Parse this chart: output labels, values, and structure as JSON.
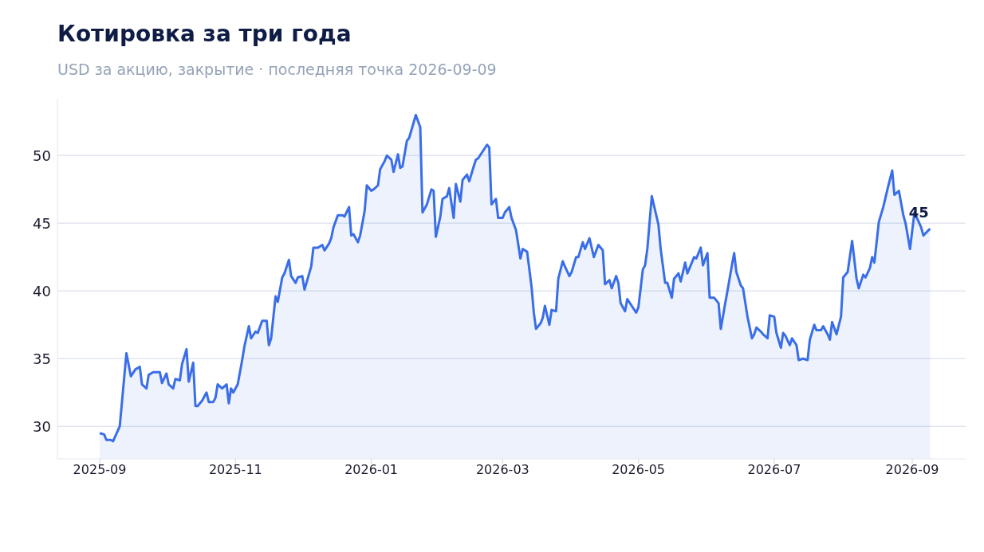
{
  "chart_data": {
    "type": "area",
    "title": "Котировка за три года",
    "subtitle": "USD за акцию, закрытие · последняя точка 2026-09-09",
    "x": [
      "2025-09-01",
      "2025-09-03",
      "2025-09-04",
      "2025-09-06",
      "2025-09-07",
      "2025-09-10",
      "2025-09-13",
      "2025-09-15",
      "2025-09-17",
      "2025-09-19",
      "2025-09-20",
      "2025-09-22",
      "2025-09-23",
      "2025-09-25",
      "2025-09-28",
      "2025-09-29",
      "2025-10-01",
      "2025-10-02",
      "2025-10-04",
      "2025-10-05",
      "2025-10-07",
      "2025-10-08",
      "2025-10-10",
      "2025-10-11",
      "2025-10-13",
      "2025-10-14",
      "2025-10-15",
      "2025-10-17",
      "2025-10-19",
      "2025-10-20",
      "2025-10-22",
      "2025-10-23",
      "2025-10-24",
      "2025-10-26",
      "2025-10-28",
      "2025-10-29",
      "2025-10-30",
      "2025-10-31",
      "2025-11-02",
      "2025-11-04",
      "2025-11-05",
      "2025-11-07",
      "2025-11-08",
      "2025-11-10",
      "2025-11-11",
      "2025-11-13",
      "2025-11-15",
      "2025-11-16",
      "2025-11-17",
      "2025-11-19",
      "2025-11-20",
      "2025-11-22",
      "2025-11-23",
      "2025-11-25",
      "2025-11-26",
      "2025-11-28",
      "2025-11-29",
      "2025-12-01",
      "2025-12-02",
      "2025-12-05",
      "2025-12-06",
      "2025-12-08",
      "2025-12-10",
      "2025-12-11",
      "2025-12-13",
      "2025-12-14",
      "2025-12-15",
      "2025-12-17",
      "2025-12-19",
      "2025-12-20",
      "2025-12-22",
      "2025-12-23",
      "2025-12-24",
      "2025-12-26",
      "2025-12-27",
      "2025-12-29",
      "2025-12-30",
      "2026-01-01",
      "2026-01-02",
      "2026-01-04",
      "2026-01-05",
      "2026-01-07",
      "2026-01-08",
      "2026-01-10",
      "2026-01-11",
      "2026-01-13",
      "2026-01-14",
      "2026-01-15",
      "2026-01-17",
      "2026-01-18",
      "2026-01-21",
      "2026-01-23",
      "2026-01-24",
      "2026-01-26",
      "2026-01-28",
      "2026-01-29",
      "2026-01-30",
      "2026-02-01",
      "2026-02-02",
      "2026-02-04",
      "2026-02-05",
      "2026-02-07",
      "2026-02-08",
      "2026-02-10",
      "2026-02-11",
      "2026-02-13",
      "2026-02-14",
      "2026-02-16",
      "2026-02-17",
      "2026-02-18",
      "2026-02-20",
      "2026-02-22",
      "2026-02-23",
      "2026-02-24",
      "2026-02-26",
      "2026-02-27",
      "2026-03-01",
      "2026-03-02",
      "2026-03-04",
      "2026-03-05",
      "2026-03-07",
      "2026-03-09",
      "2026-03-10",
      "2026-03-12",
      "2026-03-14",
      "2026-03-15",
      "2026-03-16",
      "2026-03-18",
      "2026-03-19",
      "2026-03-20",
      "2026-03-22",
      "2026-03-23",
      "2026-03-25",
      "2026-03-26",
      "2026-03-28",
      "2026-03-29",
      "2026-03-31",
      "2026-04-01",
      "2026-04-03",
      "2026-04-04",
      "2026-04-06",
      "2026-04-07",
      "2026-04-09",
      "2026-04-11",
      "2026-04-13",
      "2026-04-15",
      "2026-04-16",
      "2026-04-18",
      "2026-04-19",
      "2026-04-21",
      "2026-04-22",
      "2026-04-23",
      "2026-04-25",
      "2026-04-26",
      "2026-04-28",
      "2026-04-30",
      "2026-05-01",
      "2026-05-03",
      "2026-05-04",
      "2026-05-05",
      "2026-05-07",
      "2026-05-10",
      "2026-05-11",
      "2026-05-13",
      "2026-05-14",
      "2026-05-16",
      "2026-05-17",
      "2026-05-19",
      "2026-05-20",
      "2026-05-22",
      "2026-05-23",
      "2026-05-24",
      "2026-05-26",
      "2026-05-27",
      "2026-05-29",
      "2026-05-30",
      "2026-06-01",
      "2026-06-02",
      "2026-06-04",
      "2026-06-06",
      "2026-06-07",
      "2026-06-09",
      "2026-06-10",
      "2026-06-12",
      "2026-06-13",
      "2026-06-14",
      "2026-06-16",
      "2026-06-17",
      "2026-06-19",
      "2026-06-21",
      "2026-06-22",
      "2026-06-23",
      "2026-06-25",
      "2026-06-26",
      "2026-06-28",
      "2026-06-29",
      "2026-07-01",
      "2026-07-02",
      "2026-07-04",
      "2026-07-05",
      "2026-07-06",
      "2026-07-08",
      "2026-07-09",
      "2026-07-11",
      "2026-07-12",
      "2026-07-14",
      "2026-07-16",
      "2026-07-17",
      "2026-07-19",
      "2026-07-20",
      "2026-07-22",
      "2026-07-23",
      "2026-07-25",
      "2026-07-26",
      "2026-07-27",
      "2026-07-29",
      "2026-07-31",
      "2026-08-01",
      "2026-08-03",
      "2026-08-05",
      "2026-08-07",
      "2026-08-08",
      "2026-08-10",
      "2026-08-11",
      "2026-08-13",
      "2026-08-14",
      "2026-08-15",
      "2026-08-17",
      "2026-08-19",
      "2026-08-21",
      "2026-08-23",
      "2026-08-24",
      "2026-08-26",
      "2026-08-28",
      "2026-08-29",
      "2026-08-31",
      "2026-09-02",
      "2026-09-05",
      "2026-09-06",
      "2026-09-09"
    ],
    "values": [
      29.5,
      29.4,
      29.0,
      29.0,
      28.9,
      30.0,
      35.4,
      33.7,
      34.2,
      34.4,
      33.1,
      32.8,
      33.8,
      34.0,
      34.0,
      33.2,
      33.9,
      33.1,
      32.8,
      33.5,
      33.4,
      34.6,
      35.7,
      33.3,
      34.7,
      31.5,
      31.5,
      31.9,
      32.5,
      31.8,
      31.8,
      32.1,
      33.1,
      32.8,
      33.1,
      31.7,
      32.8,
      32.5,
      33.1,
      34.9,
      35.9,
      37.4,
      36.5,
      37.0,
      36.9,
      37.8,
      37.8,
      36.0,
      36.5,
      39.6,
      39.2,
      41.0,
      41.3,
      42.3,
      41.1,
      40.6,
      41.0,
      41.1,
      40.1,
      41.8,
      43.2,
      43.2,
      43.4,
      43.0,
      43.5,
      43.9,
      44.7,
      45.6,
      45.6,
      45.5,
      46.2,
      44.1,
      44.2,
      43.6,
      44.1,
      45.9,
      47.8,
      47.4,
      47.5,
      47.8,
      49.0,
      49.6,
      50.0,
      49.7,
      48.8,
      50.1,
      49.1,
      49.2,
      51.1,
      51.3,
      53.0,
      52.1,
      45.8,
      46.4,
      47.5,
      47.4,
      44.0,
      45.5,
      46.8,
      47.0,
      47.6,
      45.4,
      47.9,
      46.6,
      48.2,
      48.6,
      48.1,
      49.2,
      49.7,
      49.8,
      50.3,
      50.8,
      50.6,
      46.4,
      46.8,
      45.4,
      45.4,
      45.8,
      46.2,
      45.4,
      44.5,
      42.4,
      43.1,
      42.9,
      40.3,
      38.4,
      37.2,
      37.6,
      38.0,
      38.9,
      37.5,
      38.6,
      38.5,
      40.9,
      42.2,
      41.8,
      41.1,
      41.4,
      42.5,
      42.5,
      43.6,
      43.1,
      43.9,
      42.5,
      43.4,
      43.0,
      40.5,
      40.8,
      40.2,
      41.1,
      40.6,
      39.1,
      38.5,
      39.4,
      38.9,
      38.4,
      38.8,
      41.6,
      41.9,
      43.1,
      47.0,
      44.9,
      43.1,
      40.6,
      40.6,
      39.5,
      40.9,
      41.3,
      40.7,
      42.1,
      41.3,
      41.7,
      42.5,
      42.4,
      43.2,
      41.9,
      42.8,
      39.5,
      39.5,
      39.1,
      37.2,
      39.1,
      40.0,
      41.9,
      42.8,
      41.4,
      40.4,
      40.2,
      38.1,
      36.5,
      36.8,
      37.3,
      37.0,
      36.8,
      36.5,
      38.2,
      38.1,
      36.9,
      35.8,
      36.9,
      36.7,
      36.0,
      36.5,
      36.0,
      34.9,
      35.0,
      34.9,
      36.4,
      37.5,
      37.1,
      37.1,
      37.4,
      36.8,
      36.4,
      37.7,
      36.8,
      38.1,
      41.0,
      41.4,
      43.7,
      40.9,
      40.2,
      41.2,
      41.0,
      41.7,
      42.5,
      42.1,
      45.1,
      46.2,
      47.6,
      48.9,
      47.1,
      47.4,
      45.6,
      45.0,
      43.1,
      45.8,
      44.7,
      44.1,
      44.6
    ],
    "color": "#3a6ee8",
    "xlim": [
      "2025-08-13",
      "2026-09-25"
    ],
    "xticks": [
      "2025-09",
      "2025-11",
      "2026-01",
      "2026-03",
      "2026-05",
      "2026-07",
      "2026-09"
    ],
    "ylim": [
      27.6,
      54.2
    ],
    "yticks": [
      30,
      35,
      40,
      45,
      50
    ],
    "grid": "y",
    "annotations": [
      {
        "text": "45",
        "x": "2026-09-09",
        "y": 44.6
      }
    ]
  }
}
